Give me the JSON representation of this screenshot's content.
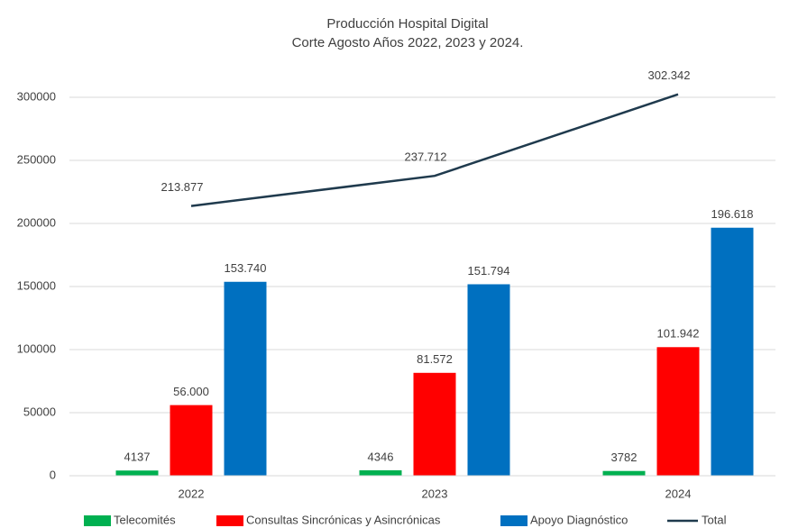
{
  "chart_data": {
    "type": "bar",
    "title": "Producción Hospital Digital",
    "subtitle": "Corte Agosto Años 2022, 2023 y 2024.",
    "categories": [
      "2022",
      "2023",
      "2024"
    ],
    "series": [
      {
        "name": "Telecomités",
        "color": "#00b050",
        "values": [
          4137,
          4346,
          3782
        ]
      },
      {
        "name": "Consultas Sincrónicas y Asincrónicas",
        "color": "#ff0000",
        "values": [
          56000,
          81572,
          101942
        ],
        "value_labels": [
          "56.000",
          "81.572",
          "101.942"
        ]
      },
      {
        "name": "Apoyo Diagnóstico",
        "color": "#0070c0",
        "values": [
          153740,
          151794,
          196618
        ],
        "value_labels": [
          "153.740",
          "151.794",
          "196.618"
        ]
      },
      {
        "name": "Total",
        "type": "line",
        "color": "#1f3a4d",
        "values": [
          213877,
          237712,
          302342
        ],
        "value_labels": [
          "213.877",
          "237.712",
          "302.342"
        ]
      }
    ],
    "ylim": [
      0,
      300000
    ],
    "yticks": [
      0,
      50000,
      100000,
      150000,
      200000,
      250000,
      300000
    ],
    "grid": true,
    "legend": "bottom"
  }
}
